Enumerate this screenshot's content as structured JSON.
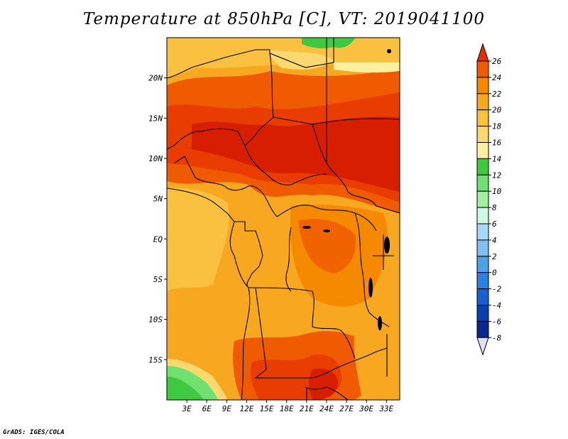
{
  "title": "Temperature at 850hPa [C], VT: 2019041100",
  "credit": "GrADS: IGES/COLA",
  "map": {
    "lon_range": [
      0,
      35
    ],
    "lat_range": [
      -20,
      25
    ],
    "lat_ticks": [
      "20N",
      "15N",
      "10N",
      "5N",
      "EQ",
      "5S",
      "10S",
      "15S"
    ],
    "lon_ticks": [
      "3E",
      "6E",
      "9E",
      "12E",
      "15E",
      "18E",
      "21E",
      "24E",
      "27E",
      "30E",
      "33E"
    ]
  },
  "colorbar": {
    "labels": [
      "26",
      "24",
      "22",
      "20",
      "18",
      "16",
      "14",
      "12",
      "10",
      "8",
      "6",
      "4",
      "2",
      "0",
      "-2",
      "-4",
      "-6",
      "-8"
    ],
    "colors": [
      "#e03000",
      "#f05a00",
      "#f58a00",
      "#f7a820",
      "#fac040",
      "#fcd870",
      "#fff0a0",
      "#40c840",
      "#70e070",
      "#a0f0a0",
      "#d0f8e0",
      "#a8d8f8",
      "#80c0f0",
      "#50a0e8",
      "#2c80e0",
      "#1860d0",
      "#0840b0",
      "#082890",
      "#081060"
    ],
    "over_color": "#e03000",
    "under_color": "#e0e0f0"
  }
}
